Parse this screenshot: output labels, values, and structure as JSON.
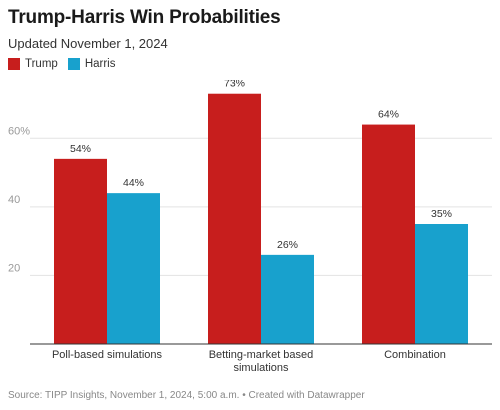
{
  "header": {
    "title": "Trump-Harris Win Probabilities",
    "subtitle": "Updated November 1, 2024"
  },
  "footer": {
    "source": "Source: TIPP Insights, November 1, 2024, 5:00 a.m. • Created with Datawrapper"
  },
  "colors": {
    "Trump": "#c71e1d",
    "Harris": "#18a1cd"
  },
  "chart_data": {
    "type": "bar",
    "categories": [
      "Poll-based simulations",
      "Betting-market based simulations",
      "Combination"
    ],
    "category_lines": [
      [
        "Poll-based simulations"
      ],
      [
        "Betting-market based",
        "simulations"
      ],
      [
        "Combination"
      ]
    ],
    "series": [
      {
        "name": "Trump",
        "values": [
          54,
          73,
          64
        ]
      },
      {
        "name": "Harris",
        "values": [
          44,
          26,
          35
        ]
      }
    ],
    "value_labels": [
      [
        "54%",
        "73%",
        "64%"
      ],
      [
        "44%",
        "26%",
        "35%"
      ]
    ],
    "yticks": [
      20,
      40,
      60
    ],
    "ytick_labels": [
      "20",
      "40",
      "60%"
    ],
    "ylim": [
      0,
      77
    ],
    "grid": true,
    "legend_position": "top-left",
    "title": "Trump-Harris Win Probabilities",
    "subtitle": "Updated November 1, 2024"
  }
}
